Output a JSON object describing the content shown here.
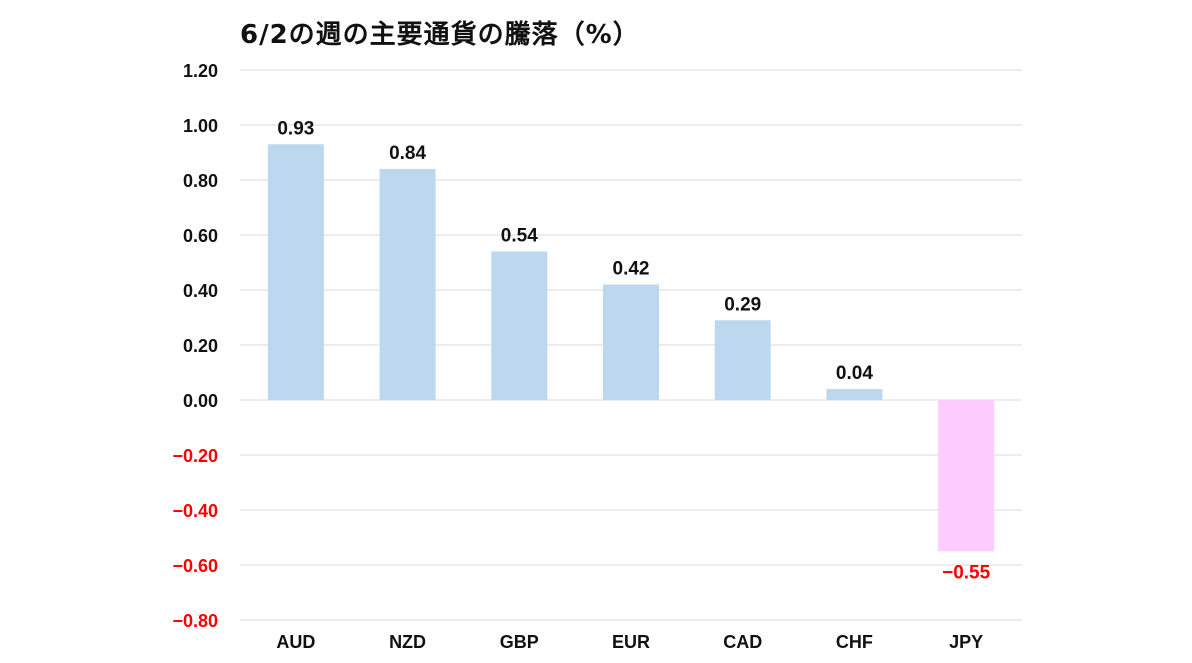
{
  "chart_data": {
    "type": "bar",
    "title": "6/2の週の主要通貨の騰落（%）",
    "categories": [
      "AUD",
      "NZD",
      "GBP",
      "EUR",
      "CAD",
      "CHF",
      "JPY"
    ],
    "values": [
      0.93,
      0.84,
      0.54,
      0.42,
      0.29,
      0.04,
      -0.55
    ],
    "value_labels": [
      "0.93",
      "0.84",
      "0.54",
      "0.42",
      "0.29",
      "0.04",
      "−0.55"
    ],
    "ylim": [
      -0.8,
      1.2
    ],
    "yticks": [
      1.2,
      1.0,
      0.8,
      0.6,
      0.4,
      0.2,
      0.0,
      -0.2,
      -0.4,
      -0.6,
      -0.8
    ],
    "ytick_labels": [
      "1.20",
      "1.00",
      "0.80",
      "0.60",
      "0.40",
      "0.20",
      "0.00",
      "−0.20",
      "−0.40",
      "−0.60",
      "−0.80"
    ],
    "xlabel": "",
    "ylabel": "",
    "grid": true,
    "legend": "none",
    "colors": {
      "positive_bar": "#bdd7ee",
      "negative_bar": "#ffccff",
      "positive_text": "#111111",
      "negative_text": "#ff0000",
      "gridline": "#d9d9d9"
    }
  }
}
